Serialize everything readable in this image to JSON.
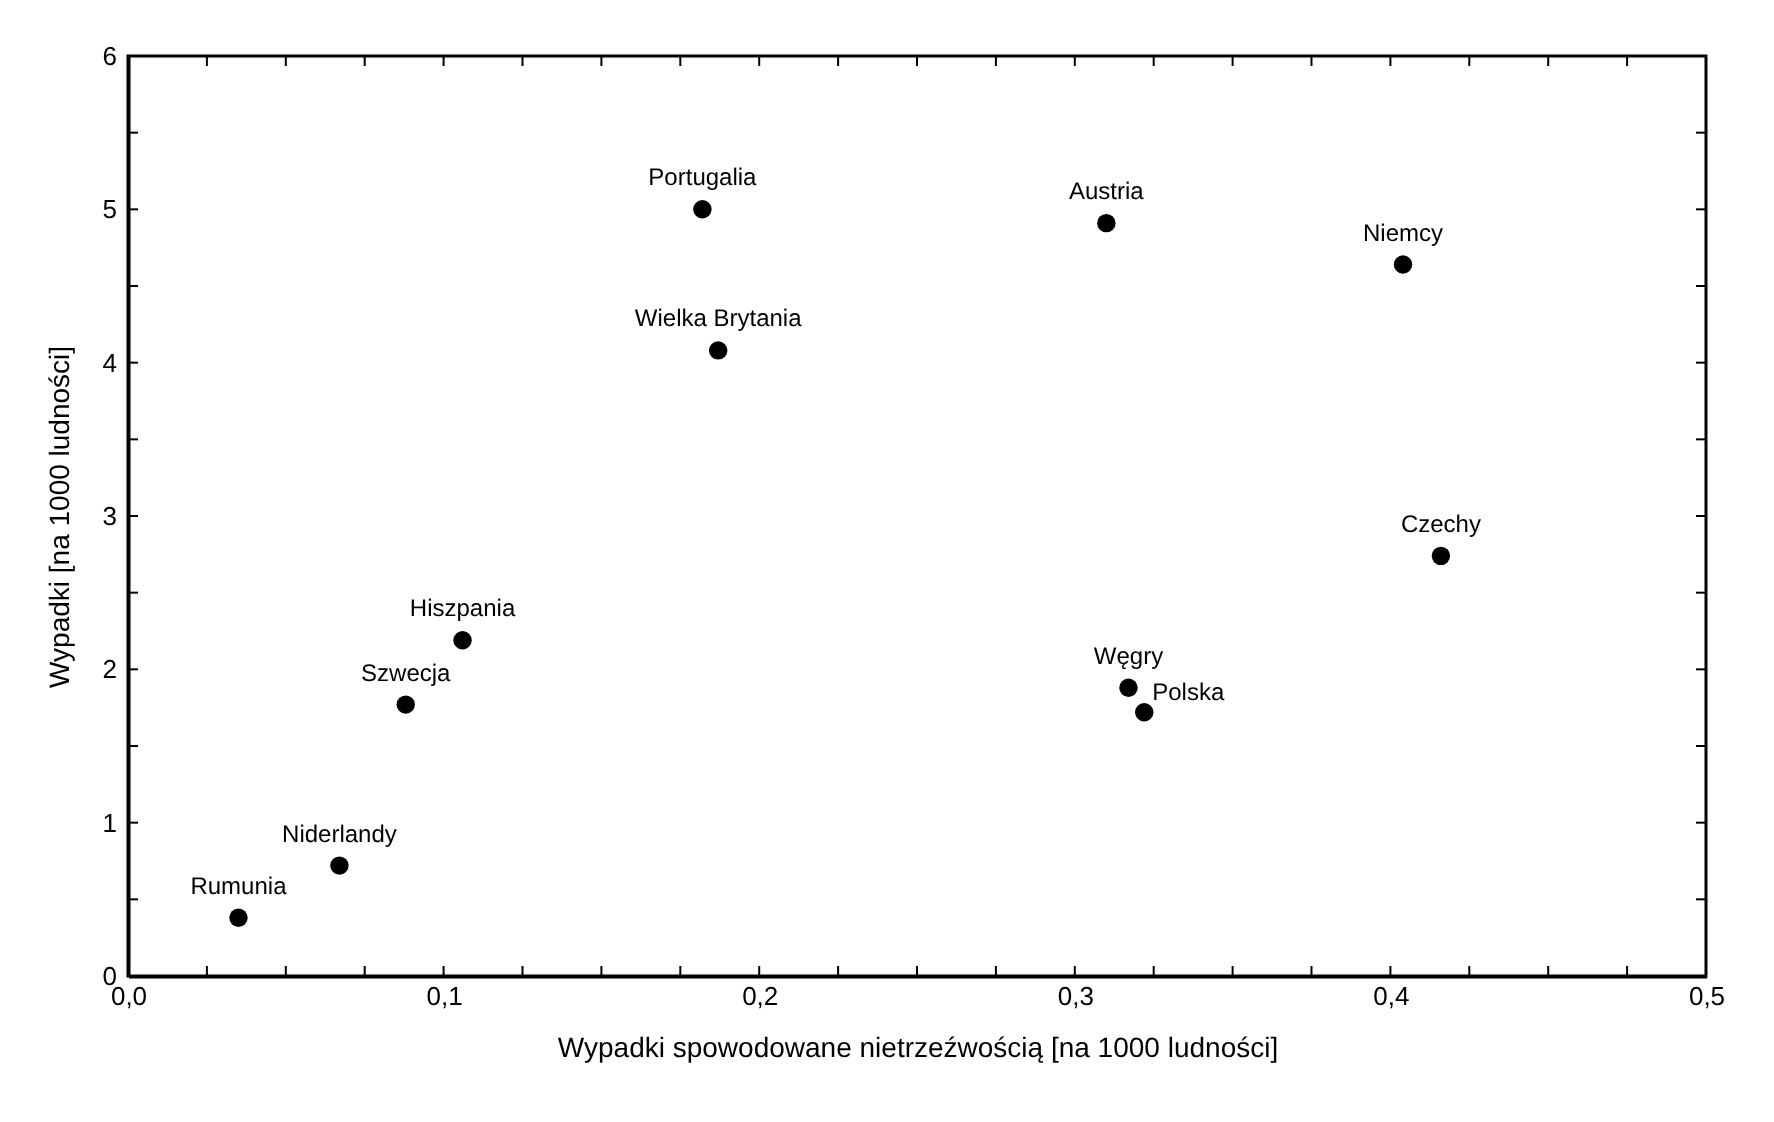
{
  "chart_data": {
    "type": "scatter",
    "xlabel": "Wypadki spowodowane nietrzeźwością [na 1000 ludności]",
    "ylabel": "Wypadki [na 1000 ludności]",
    "x": [
      0.035,
      0.067,
      0.088,
      0.106,
      0.182,
      0.187,
      0.31,
      0.404,
      0.416,
      0.317,
      0.322
    ],
    "series": [
      {
        "color": "#000000",
        "values": [
          0.38,
          0.72,
          1.77,
          2.19,
          5.0,
          4.08,
          4.91,
          4.64,
          2.74,
          1.88,
          1.72
        ]
      }
    ],
    "annotations": [
      {
        "text": "Rumunia",
        "x": 0.035,
        "y": 0.38
      },
      {
        "text": "Niderlandy",
        "x": 0.067,
        "y": 0.72
      },
      {
        "text": "Szwecja",
        "x": 0.088,
        "y": 1.77
      },
      {
        "text": "Hiszpania",
        "x": 0.106,
        "y": 2.19
      },
      {
        "text": "Portugalia",
        "x": 0.182,
        "y": 5.0
      },
      {
        "text": "Wielka Brytania",
        "x": 0.187,
        "y": 4.08
      },
      {
        "text": "Austria",
        "x": 0.31,
        "y": 4.91
      },
      {
        "text": "Niemcy",
        "x": 0.404,
        "y": 4.64
      },
      {
        "text": "Czechy",
        "x": 0.416,
        "y": 2.74
      },
      {
        "text": "Węgry",
        "x": 0.317,
        "y": 1.88
      },
      {
        "text": "Polska",
        "x": 0.322,
        "y": 1.72
      }
    ],
    "xlim": [
      0,
      0.5
    ],
    "ylim": [
      0,
      6
    ],
    "xticks": [
      {
        "value": 0,
        "label": "0,0"
      },
      {
        "value": 0.025,
        "label": null
      },
      {
        "value": 0.05,
        "label": null
      },
      {
        "value": 0.075,
        "label": null
      },
      {
        "value": 0.1,
        "label": "0,1"
      },
      {
        "value": 0.125,
        "label": null
      },
      {
        "value": 0.15,
        "label": null
      },
      {
        "value": 0.175,
        "label": null
      },
      {
        "value": 0.2,
        "label": "0,2"
      },
      {
        "value": 0.225,
        "label": null
      },
      {
        "value": 0.25,
        "label": null
      },
      {
        "value": 0.275,
        "label": null
      },
      {
        "value": 0.3,
        "label": "0,3"
      },
      {
        "value": 0.325,
        "label": null
      },
      {
        "value": 0.35,
        "label": null
      },
      {
        "value": 0.375,
        "label": null
      },
      {
        "value": 0.4,
        "label": "0,4"
      },
      {
        "value": 0.425,
        "label": null
      },
      {
        "value": 0.45,
        "label": null
      },
      {
        "value": 0.475,
        "label": null
      },
      {
        "value": 0.5,
        "label": "0,5"
      }
    ],
    "yticks": [
      0,
      {
        "value": 0.5,
        "label": null
      },
      1,
      {
        "value": 1.5,
        "label": null
      },
      2,
      {
        "value": 2.5,
        "label": null
      },
      3,
      {
        "value": 3.5,
        "label": null
      },
      4,
      {
        "value": 4.5,
        "label": null
      },
      5,
      {
        "value": 5.5,
        "label": null
      },
      6
    ],
    "marker": "circle",
    "grid": false
  }
}
